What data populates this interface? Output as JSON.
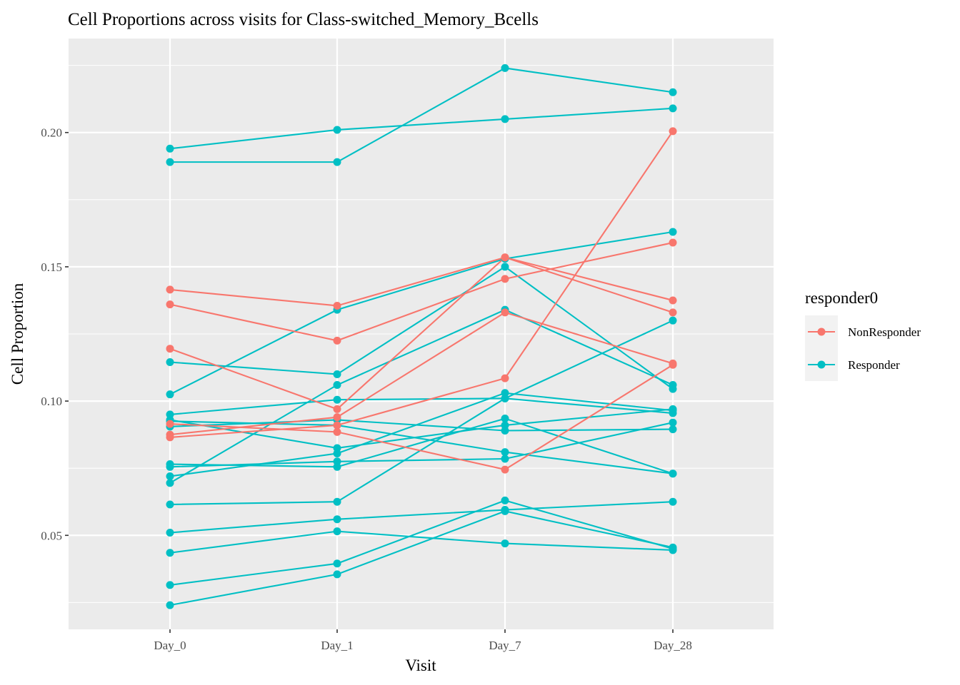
{
  "chart_data": {
    "type": "line",
    "title": "Cell Proportions across visits for Class-switched_Memory_Bcells",
    "xlabel": "Visit",
    "ylabel": "Cell Proportion",
    "categories": [
      "Day_0",
      "Day_1",
      "Day_7",
      "Day_28"
    ],
    "ylim": [
      0.015,
      0.235
    ],
    "yticks": [
      0.05,
      0.1,
      0.15,
      0.2
    ],
    "ytick_labels": [
      "0.05",
      "0.10",
      "0.15",
      "0.20"
    ],
    "grid": true,
    "legend": {
      "title": "responder0",
      "position": "right",
      "entries": [
        {
          "label": "NonResponder",
          "color": "#F8766D"
        },
        {
          "label": "Responder",
          "color": "#00BFC4"
        }
      ]
    },
    "colors": {
      "NonResponder": "#F8766D",
      "Responder": "#00BFC4"
    },
    "series": [
      {
        "group": "Responder",
        "values": [
          0.194,
          0.201,
          0.205,
          0.209
        ]
      },
      {
        "group": "Responder",
        "values": [
          0.189,
          0.189,
          0.224,
          0.215
        ]
      },
      {
        "group": "Responder",
        "values": [
          0.1025,
          0.134,
          0.153,
          0.163
        ]
      },
      {
        "group": "Responder",
        "values": [
          0.1145,
          0.11,
          0.15,
          0.1045
        ]
      },
      {
        "group": "Responder",
        "values": [
          0.095,
          0.1005,
          0.101,
          0.0955
        ]
      },
      {
        "group": "Responder",
        "values": [
          0.093,
          0.0825,
          0.091,
          0.097
        ]
      },
      {
        "group": "Responder",
        "values": [
          0.0905,
          0.093,
          0.089,
          0.0895
        ]
      },
      {
        "group": "Responder",
        "values": [
          0.0765,
          0.0755,
          0.0935,
          0.073
        ]
      },
      {
        "group": "Responder",
        "values": [
          0.0755,
          0.0775,
          0.0785,
          0.092
        ]
      },
      {
        "group": "Responder",
        "values": [
          0.072,
          0.0805,
          0.103,
          0.0965
        ]
      },
      {
        "group": "Responder",
        "values": [
          0.0695,
          0.106,
          0.134,
          0.106
        ]
      },
      {
        "group": "Responder",
        "values": [
          0.0615,
          0.0625,
          0.101,
          0.13
        ]
      },
      {
        "group": "Responder",
        "values": [
          0.051,
          0.056,
          0.0595,
          0.0625
        ]
      },
      {
        "group": "Responder",
        "values": [
          0.0435,
          0.0515,
          0.047,
          0.0445
        ]
      },
      {
        "group": "Responder",
        "values": [
          0.0315,
          0.0395,
          0.063,
          0.045
        ]
      },
      {
        "group": "Responder",
        "values": [
          0.024,
          0.0355,
          0.059,
          0.0455
        ]
      },
      {
        "group": "Responder",
        "values": [
          0.0925,
          0.091,
          0.081,
          0.073
        ]
      },
      {
        "group": "NonResponder",
        "values": [
          0.1415,
          0.1355,
          0.1535,
          0.133
        ]
      },
      {
        "group": "NonResponder",
        "values": [
          0.136,
          0.1225,
          0.1455,
          0.159
        ]
      },
      {
        "group": "NonResponder",
        "values": [
          0.1195,
          0.097,
          0.1535,
          0.1375
        ]
      },
      {
        "group": "NonResponder",
        "values": [
          0.0915,
          0.0885,
          0.0745,
          0.1135
        ]
      },
      {
        "group": "NonResponder",
        "values": [
          0.0875,
          0.094,
          0.133,
          0.114
        ]
      },
      {
        "group": "NonResponder",
        "values": [
          0.0865,
          0.091,
          0.1085,
          0.2005
        ]
      }
    ]
  }
}
